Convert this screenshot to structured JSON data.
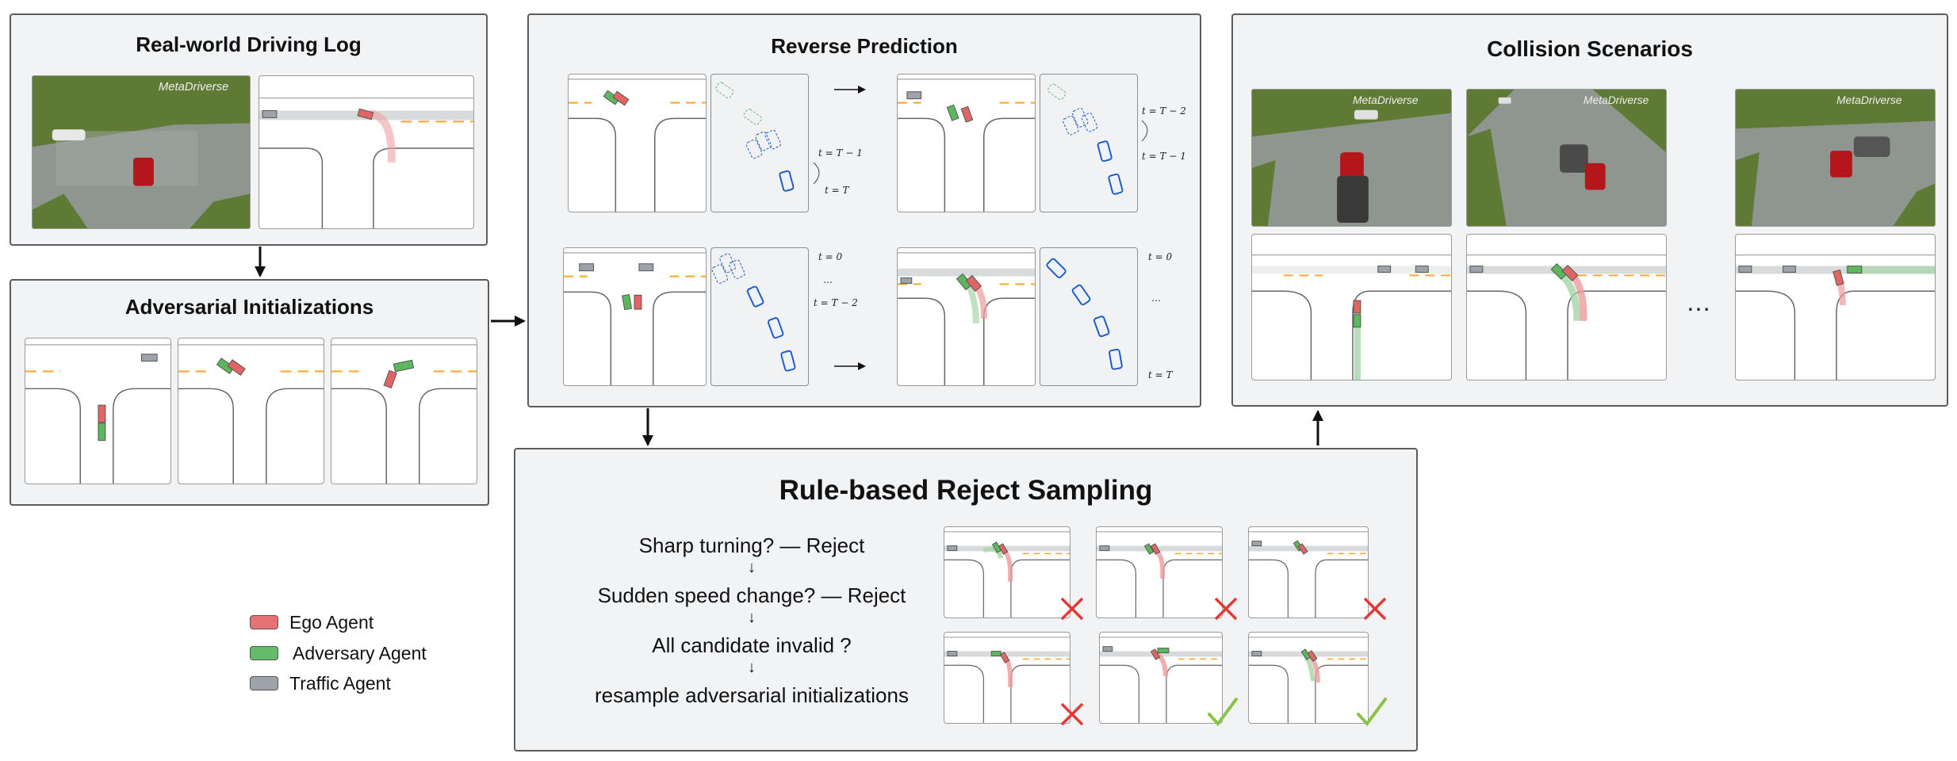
{
  "panels": {
    "driving_log": {
      "title": "Real-world Driving Log"
    },
    "adversarial_init": {
      "title": "Adversarial Initializations"
    },
    "reverse_prediction": {
      "title": "Reverse Prediction",
      "time_labels": {
        "top_first": [
          "t = T − 1",
          "t = T"
        ],
        "top_second": [
          "t = T − 2",
          "t = T − 1"
        ],
        "bottom_first": [
          "t = 0",
          "…",
          "t = T − 2"
        ],
        "bottom_second": [
          "t = 0",
          "…",
          "t = T"
        ]
      }
    },
    "collision_scenarios": {
      "title": "Collision Scenarios",
      "ellipsis": "…"
    },
    "reject_sampling": {
      "title": "Rule-based Reject Sampling",
      "rules": [
        "Sharp turning? — Reject",
        "↓",
        "Sudden speed change? — Reject",
        "↓",
        "All candidate invalid ?",
        "↓",
        "resample adversarial initializations"
      ],
      "marks": [
        "reject",
        "reject",
        "reject",
        "reject",
        "accept",
        "accept"
      ]
    }
  },
  "watermark": "MetaDriverse",
  "legend": [
    {
      "label": "Ego Agent",
      "color": "#e57373"
    },
    {
      "label": "Adversary Agent",
      "color": "#66bb6a"
    },
    {
      "label": "Traffic Agent",
      "color": "#9ea3ab"
    }
  ],
  "colors": {
    "ego": "#e06666",
    "adversary": "#5cb85c",
    "traffic": "#9ea3ab",
    "reject": "#e53935",
    "accept": "#8bc34a",
    "lane_yellow": "#f5a623",
    "trajectory_blue": "#1e5bc6"
  }
}
